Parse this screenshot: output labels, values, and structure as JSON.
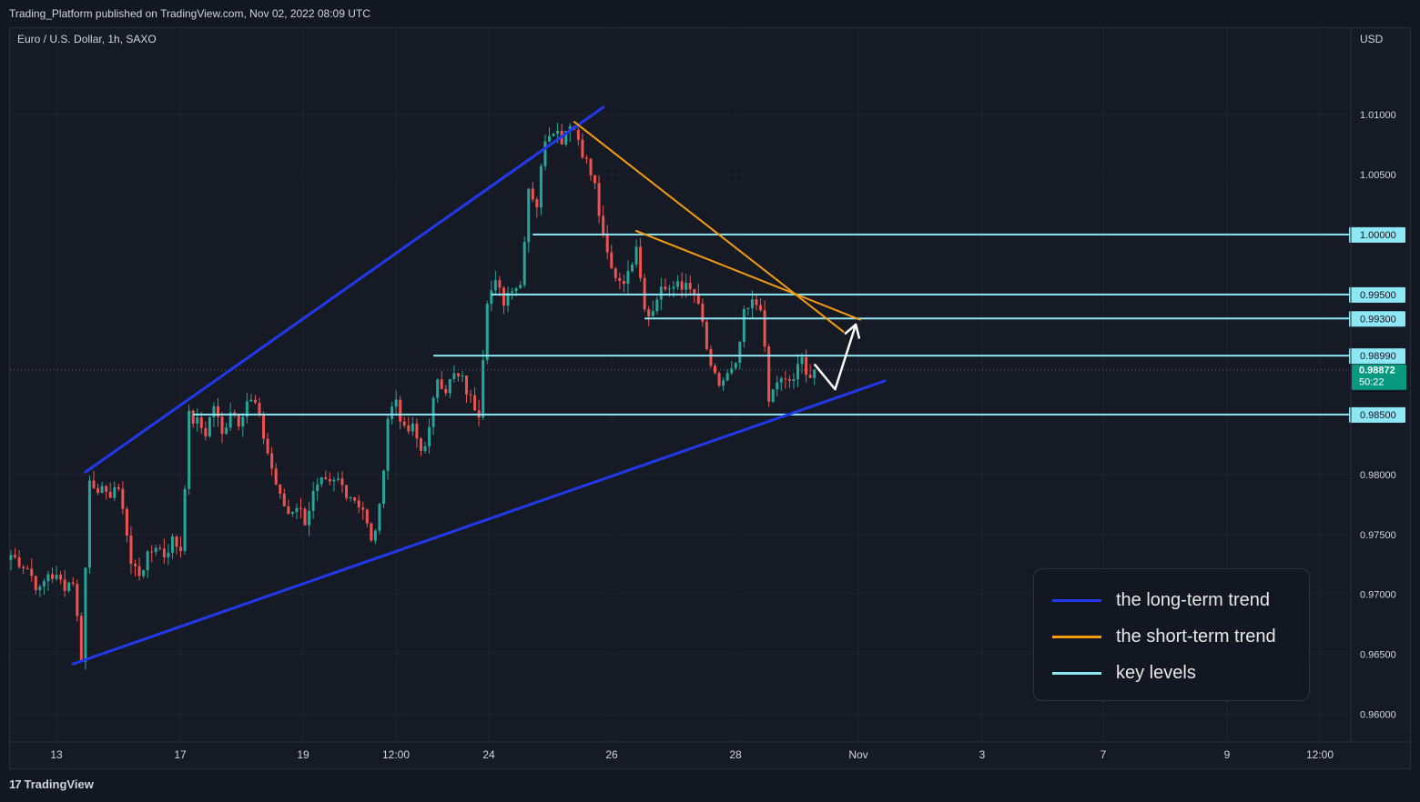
{
  "header": {
    "publisher_line": "Trading_Platform published on TradingView.com, Nov 02, 2022 08:09 UTC"
  },
  "footer": {
    "brand_logo": "17",
    "brand_text": "TradingView"
  },
  "chart_data": {
    "type": "candlestick",
    "symbol_line": "Euro / U.S. Dollar, 1h, SAXO",
    "currency": "USD",
    "ylim": [
      0.9577,
      1.0172
    ],
    "y_ticks": [
      "1.01000",
      "1.00500",
      "1.00000",
      "0.99500",
      "0.99300",
      "0.98990",
      "0.98500",
      "0.98000",
      "0.97500",
      "0.97000",
      "0.96500",
      "0.96000"
    ],
    "x_ticks": [
      "13",
      "17",
      "19",
      "12:00",
      "24",
      "26",
      "28",
      "Nov",
      "3",
      "7",
      "9",
      "12:00"
    ],
    "grid": true,
    "colors": {
      "up": "#26a69a",
      "down": "#ef5350",
      "long_term": "#2139ea",
      "short_term": "#f39c12",
      "key_level": "#8ee7f5",
      "projection": "#ffffff",
      "last_price_bg": "#089981"
    },
    "price_path_key_points": [
      {
        "x": 0,
        "y": 0.9733
      },
      {
        "x": 4,
        "y": 0.9722
      },
      {
        "x": 7,
        "y": 0.9702
      },
      {
        "x": 9,
        "y": 0.9718
      },
      {
        "x": 13,
        "y": 0.9708
      },
      {
        "x": 15,
        "y": 0.9712
      },
      {
        "x": 17,
        "y": 0.9648
      },
      {
        "x": 19,
        "y": 0.9795
      },
      {
        "x": 21,
        "y": 0.979
      },
      {
        "x": 23,
        "y": 0.978
      },
      {
        "x": 25,
        "y": 0.979
      },
      {
        "x": 27,
        "y": 0.9775
      },
      {
        "x": 29,
        "y": 0.9725
      },
      {
        "x": 31,
        "y": 0.9718
      },
      {
        "x": 33,
        "y": 0.973
      },
      {
        "x": 35,
        "y": 0.9742
      },
      {
        "x": 37,
        "y": 0.9733
      },
      {
        "x": 39,
        "y": 0.9745
      },
      {
        "x": 41,
        "y": 0.9738
      },
      {
        "x": 43,
        "y": 0.9848
      },
      {
        "x": 45,
        "y": 0.9843
      },
      {
        "x": 47,
        "y": 0.9835
      },
      {
        "x": 49,
        "y": 0.9858
      },
      {
        "x": 51,
        "y": 0.9832
      },
      {
        "x": 53,
        "y": 0.9855
      },
      {
        "x": 55,
        "y": 0.9845
      },
      {
        "x": 57,
        "y": 0.9862
      },
      {
        "x": 59,
        "y": 0.9858
      },
      {
        "x": 61,
        "y": 0.9832
      },
      {
        "x": 63,
        "y": 0.9805
      },
      {
        "x": 65,
        "y": 0.978
      },
      {
        "x": 67,
        "y": 0.9768
      },
      {
        "x": 69,
        "y": 0.9775
      },
      {
        "x": 71,
        "y": 0.9762
      },
      {
        "x": 73,
        "y": 0.9783
      },
      {
        "x": 75,
        "y": 0.9792
      },
      {
        "x": 77,
        "y": 0.979
      },
      {
        "x": 79,
        "y": 0.9795
      },
      {
        "x": 81,
        "y": 0.9786
      },
      {
        "x": 83,
        "y": 0.978
      },
      {
        "x": 85,
        "y": 0.9772
      },
      {
        "x": 87,
        "y": 0.9742
      },
      {
        "x": 89,
        "y": 0.977
      },
      {
        "x": 91,
        "y": 0.9848
      },
      {
        "x": 93,
        "y": 0.9863
      },
      {
        "x": 95,
        "y": 0.9835
      },
      {
        "x": 97,
        "y": 0.9838
      },
      {
        "x": 99,
        "y": 0.982
      },
      {
        "x": 101,
        "y": 0.9836
      },
      {
        "x": 103,
        "y": 0.9882
      },
      {
        "x": 105,
        "y": 0.9872
      },
      {
        "x": 107,
        "y": 0.9882
      },
      {
        "x": 109,
        "y": 0.9878
      },
      {
        "x": 111,
        "y": 0.9862
      },
      {
        "x": 113,
        "y": 0.9853
      },
      {
        "x": 115,
        "y": 0.9948
      },
      {
        "x": 117,
        "y": 0.9958
      },
      {
        "x": 119,
        "y": 0.9945
      },
      {
        "x": 121,
        "y": 0.9958
      },
      {
        "x": 123,
        "y": 0.9958
      },
      {
        "x": 125,
        "y": 1.004
      },
      {
        "x": 127,
        "y": 1.0025
      },
      {
        "x": 129,
        "y": 1.0082
      },
      {
        "x": 131,
        "y": 1.009
      },
      {
        "x": 133,
        "y": 1.008
      },
      {
        "x": 135,
        "y": 1.0095
      },
      {
        "x": 137,
        "y": 1.008
      },
      {
        "x": 139,
        "y": 1.006
      },
      {
        "x": 141,
        "y": 1.004
      },
      {
        "x": 143,
        "y": 0.9995
      },
      {
        "x": 145,
        "y": 0.997
      },
      {
        "x": 147,
        "y": 0.9963
      },
      {
        "x": 149,
        "y": 0.9965
      },
      {
        "x": 151,
        "y": 0.9995
      },
      {
        "x": 153,
        "y": 0.994
      },
      {
        "x": 155,
        "y": 0.9935
      },
      {
        "x": 157,
        "y": 0.9958
      },
      {
        "x": 159,
        "y": 0.995
      },
      {
        "x": 161,
        "y": 0.9962
      },
      {
        "x": 163,
        "y": 0.9955
      },
      {
        "x": 165,
        "y": 0.995
      },
      {
        "x": 167,
        "y": 0.9925
      },
      {
        "x": 169,
        "y": 0.9885
      },
      {
        "x": 171,
        "y": 0.9875
      },
      {
        "x": 173,
        "y": 0.9882
      },
      {
        "x": 175,
        "y": 0.9888
      },
      {
        "x": 177,
        "y": 0.9932
      },
      {
        "x": 179,
        "y": 0.9942
      },
      {
        "x": 181,
        "y": 0.9942
      },
      {
        "x": 183,
        "y": 0.986
      },
      {
        "x": 185,
        "y": 0.9878
      },
      {
        "x": 187,
        "y": 0.9876
      },
      {
        "x": 189,
        "y": 0.988
      },
      {
        "x": 191,
        "y": 0.9895
      },
      {
        "x": 193,
        "y": 0.9882
      },
      {
        "x": 194,
        "y": 0.98872
      }
    ],
    "last_price": {
      "value": "0.98872",
      "countdown": "50:22"
    },
    "key_levels": [
      {
        "value": 1.0,
        "label": "1.00000",
        "x_start": 126
      },
      {
        "value": 0.995,
        "label": "0.99500",
        "x_start": 116
      },
      {
        "value": 0.993,
        "label": "0.99300",
        "x_start": 153
      },
      {
        "value": 0.9899,
        "label": "0.98990",
        "x_start": 102
      },
      {
        "value": 0.985,
        "label": "0.98500",
        "x_start": 44
      }
    ],
    "trend_lines": [
      {
        "kind": "long_term",
        "x1": 18,
        "y1": 0.9802,
        "x2": 143,
        "y2": 1.0106
      },
      {
        "kind": "long_term",
        "x1": 15,
        "y1": 0.9642,
        "x2": 211,
        "y2": 0.9878
      },
      {
        "kind": "short_term",
        "x1": 136,
        "y1": 1.0094,
        "x2": 201,
        "y2": 0.9919
      },
      {
        "kind": "short_term",
        "x1": 151,
        "y1": 1.0003,
        "x2": 205,
        "y2": 0.9929
      }
    ],
    "projection_arrow": [
      {
        "x": 194,
        "y": 0.9892
      },
      {
        "x": 199,
        "y": 0.9871
      },
      {
        "x": 204,
        "y": 0.9925
      }
    ],
    "legend_position": "bottom-right",
    "legend": [
      {
        "kind": "long_term",
        "label": "the long-term trend"
      },
      {
        "kind": "short_term",
        "label": "the short-term trend"
      },
      {
        "kind": "key_level",
        "label": "key levels"
      }
    ]
  }
}
